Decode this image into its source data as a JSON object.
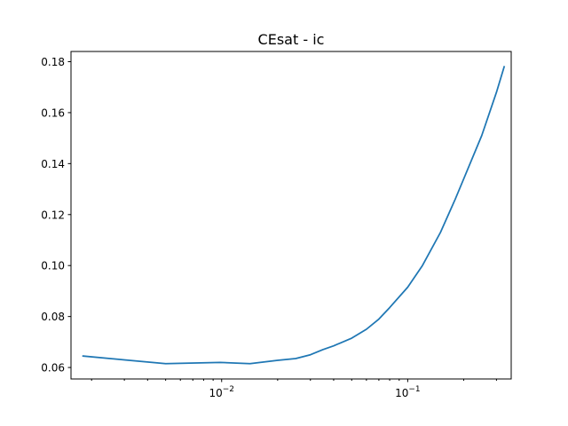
{
  "chart_data": {
    "type": "line",
    "title": "CEsat - ic",
    "xlabel": "",
    "ylabel": "",
    "xscale": "log",
    "xlim": [
      0.00155,
      0.36
    ],
    "ylim": [
      0.0555,
      0.184
    ],
    "grid": false,
    "legend": "none",
    "y_ticks": [
      0.06,
      0.08,
      0.1,
      0.12,
      0.14,
      0.16,
      0.18
    ],
    "y_tick_labels": [
      "0.06",
      "0.08",
      "0.10",
      "0.12",
      "0.14",
      "0.16",
      "0.18"
    ],
    "x_major_ticks": [
      0.01,
      0.1
    ],
    "x_major_tick_base": "10",
    "x_major_tick_exponents": [
      "−2",
      "−1"
    ],
    "series": [
      {
        "color": "#1f77b4",
        "x": [
          0.0018,
          0.003,
          0.005,
          0.0098,
          0.0142,
          0.02,
          0.025,
          0.03,
          0.035,
          0.04,
          0.05,
          0.06,
          0.07,
          0.08,
          0.1,
          0.12,
          0.15,
          0.18,
          0.2,
          0.25,
          0.3,
          0.33
        ],
        "values": [
          0.0645,
          0.063,
          0.0615,
          0.062,
          0.0615,
          0.0628,
          0.0635,
          0.065,
          0.067,
          0.0685,
          0.0715,
          0.075,
          0.079,
          0.0835,
          0.0915,
          0.1,
          0.113,
          0.126,
          0.134,
          0.151,
          0.168,
          0.178
        ]
      }
    ]
  }
}
